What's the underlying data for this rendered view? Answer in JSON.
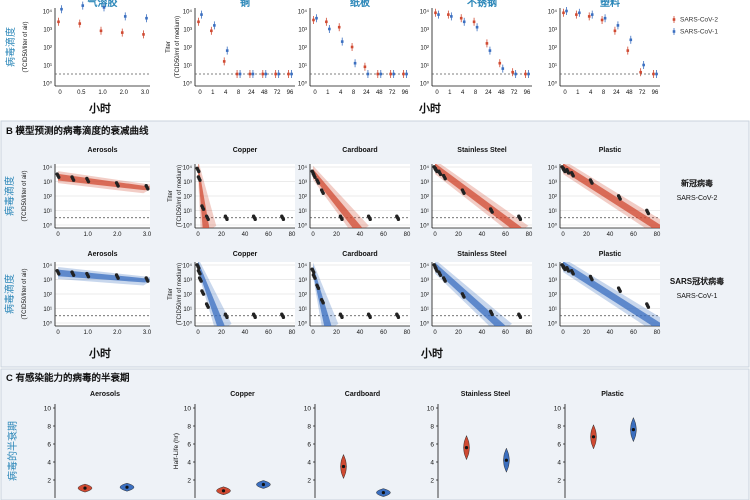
{
  "colors": {
    "cov2": "#d04a32",
    "cov1": "#3b6fc0",
    "cn_label": "#2a86b8",
    "section_bg": "#eef2f7",
    "ink": "#111111",
    "grid": "#d8d8d8"
  },
  "chart_data": [
    {
      "id": "panel_a",
      "type": "scatter",
      "legend": [
        "SARS-CoV-2",
        "SARS-CoV-1"
      ],
      "legend_position": "top-right",
      "ylabel_cn": "病毒滴度",
      "ylabel_air": "(TCID50/liter of air)",
      "ylabel_surface_1": "Titer",
      "ylabel_surface_2": "(TCID50/ml of medium)",
      "xlabel_cn": "小时",
      "y_ticks": [
        "10⁴",
        "10³",
        "10²",
        "10¹",
        "10⁰"
      ],
      "detection_limit_log": 0.5,
      "subplots": [
        {
          "title": "气溶胶",
          "x_ticks": [
            "0",
            "0.5",
            "1.0",
            "2.0",
            "3.0"
          ],
          "cov2_log": [
            3.4,
            3.3,
            2.9,
            2.8,
            2.7
          ],
          "cov1_log": [
            4.1,
            4.3,
            4.2,
            3.7,
            3.6
          ]
        },
        {
          "title": "铜",
          "x_ticks": [
            "0",
            "1",
            "4",
            "8",
            "24",
            "48",
            "72",
            "96"
          ],
          "cov2_log": [
            3.4,
            2.9,
            1.2,
            0.5,
            0.5,
            0.5,
            0.5,
            0.5
          ],
          "cov1_log": [
            3.8,
            3.2,
            1.8,
            0.5,
            0.5,
            0.5,
            0.5,
            0.5
          ]
        },
        {
          "title": "纸板",
          "x_ticks": [
            "0",
            "1",
            "4",
            "8",
            "24",
            "48",
            "72",
            "96"
          ],
          "cov2_log": [
            3.5,
            3.4,
            3.1,
            2.0,
            0.9,
            0.5,
            0.5,
            0.5
          ],
          "cov1_log": [
            3.6,
            3.0,
            2.3,
            1.1,
            0.5,
            0.5,
            0.5,
            0.5
          ]
        },
        {
          "title": "不锈钢",
          "x_ticks": [
            "0",
            "1",
            "4",
            "8",
            "24",
            "48",
            "72",
            "96"
          ],
          "cov2_log": [
            3.9,
            3.8,
            3.6,
            3.4,
            2.2,
            1.1,
            0.6,
            0.5
          ],
          "cov1_log": [
            3.8,
            3.7,
            3.4,
            3.1,
            1.8,
            0.8,
            0.5,
            0.5
          ]
        },
        {
          "title": "塑料",
          "x_ticks": [
            "0",
            "1",
            "4",
            "8",
            "24",
            "48",
            "72",
            "96"
          ],
          "cov2_log": [
            3.9,
            3.8,
            3.7,
            3.5,
            2.9,
            1.8,
            0.6,
            0.5
          ],
          "cov1_log": [
            4.0,
            3.9,
            3.8,
            3.6,
            3.2,
            2.4,
            1.0,
            0.5
          ]
        }
      ]
    },
    {
      "id": "panel_b",
      "type": "line",
      "heading": "B 模型预测的病毒滴度的衰减曲线",
      "ylabel_cn": "病毒滴度",
      "ylabel_air": "(TCID50/liter of air)",
      "ylabel_surface_1": "Titer",
      "ylabel_surface_2": "(TCID50/ml of medium)",
      "xlabel_cn": "小时",
      "y_ticks": [
        "10⁴",
        "10³",
        "10²",
        "10¹",
        "10⁰"
      ],
      "row_labels": [
        {
          "cn": "新冠病毒",
          "en": "SARS-CoV-2"
        },
        {
          "cn": "SARS冠状病毒",
          "en": "SARS-CoV-1"
        }
      ],
      "columns": [
        {
          "title": "Aerosols",
          "x_ticks": [
            "0",
            "1.0",
            "2.0",
            "3.0"
          ],
          "xmax": 3,
          "cov2": {
            "t": [
              0,
              0.5,
              1,
              2,
              3
            ],
            "log": [
              3.4,
              3.2,
              3.1,
              2.8,
              2.6
            ],
            "start": 3.3,
            "end": 2.6
          },
          "cov1": {
            "t": [
              0,
              0.5,
              1,
              2,
              3
            ],
            "log": [
              3.5,
              3.4,
              3.3,
              3.2,
              3.0
            ],
            "start": 3.45,
            "end": 3.0
          }
        },
        {
          "title": "Copper",
          "x_ticks": [
            "0",
            "20",
            "40",
            "60",
            "80"
          ],
          "xmax": 80,
          "cov2": {
            "t": [
              0,
              1,
              4,
              8,
              24,
              48,
              72
            ],
            "log": [
              3.8,
              3.2,
              1.2,
              0.5,
              0.5,
              0.5,
              0.5
            ],
            "start": 4.0,
            "zero_at": 6
          },
          "cov1": {
            "t": [
              0,
              1,
              2,
              4,
              8,
              24,
              48,
              72
            ],
            "log": [
              3.9,
              3.5,
              3.0,
              2.1,
              1.2,
              0.5,
              0.5,
              0.5
            ],
            "start": 4.0,
            "zero_at": 19
          }
        },
        {
          "title": "Cardboard",
          "x_ticks": [
            "0",
            "20",
            "40",
            "60",
            "80"
          ],
          "xmax": 80,
          "cov2": {
            "t": [
              0,
              1,
              4,
              8,
              24,
              48,
              72
            ],
            "log": [
              3.6,
              3.4,
              3.0,
              2.3,
              0.5,
              0.5,
              0.5
            ],
            "start": 3.6,
            "zero_at": 38
          },
          "cov1": {
            "t": [
              0,
              1,
              4,
              8,
              24,
              48,
              72
            ],
            "log": [
              3.6,
              3.2,
              2.5,
              1.5,
              0.5,
              0.5,
              0.5
            ],
            "start": 3.7,
            "zero_at": 12
          }
        },
        {
          "title": "Stainless Steel",
          "x_ticks": [
            "0",
            "20",
            "40",
            "60",
            "80"
          ],
          "xmax": 80,
          "cov2": {
            "t": [
              0,
              1,
              4,
              8,
              24,
              48,
              72
            ],
            "log": [
              3.9,
              3.8,
              3.6,
              3.3,
              2.3,
              1.0,
              0.5
            ],
            "start": 4.0,
            "zero_at": 70
          },
          "cov1": {
            "t": [
              0,
              1,
              4,
              8,
              24,
              48,
              72
            ],
            "log": [
              3.9,
              3.7,
              3.4,
              3.0,
              1.9,
              0.7,
              0.5
            ],
            "start": 3.9,
            "zero_at": 56
          }
        },
        {
          "title": "Plastic",
          "x_ticks": [
            "0",
            "20",
            "40",
            "60",
            "80"
          ],
          "xmax": 80,
          "cov2": {
            "t": [
              0,
              1,
              4,
              8,
              24,
              48,
              72
            ],
            "log": [
              3.9,
              3.8,
              3.7,
              3.5,
              3.0,
              1.9,
              0.9
            ],
            "start": 4.0,
            "zero_at": 84
          },
          "cov1": {
            "t": [
              0,
              1,
              4,
              8,
              24,
              48,
              72
            ],
            "log": [
              3.9,
              3.8,
              3.7,
              3.5,
              3.1,
              2.3,
              1.2
            ],
            "start": 4.0,
            "zero_at": 88
          }
        }
      ]
    },
    {
      "id": "panel_c",
      "type": "scatter",
      "heading": "C 有感染能力的病毒的半衰期",
      "ylabel_cn": "病毒的半衰期",
      "ylabel_en": "Half-Life (hr)",
      "y_ticks": [
        "10",
        "8",
        "6",
        "4",
        "2"
      ],
      "ylim": [
        0,
        10
      ],
      "columns": [
        {
          "title": "Aerosols",
          "cov2": 1.1,
          "cov1": 1.2
        },
        {
          "title": "Copper",
          "cov2": 0.8,
          "cov1": 1.5
        },
        {
          "title": "Cardboard",
          "cov2": 3.5,
          "cov1": 0.6
        },
        {
          "title": "Stainless Steel",
          "cov2": 5.6,
          "cov1": 4.2
        },
        {
          "title": "Plastic",
          "cov2": 6.8,
          "cov1": 7.6
        }
      ]
    }
  ]
}
